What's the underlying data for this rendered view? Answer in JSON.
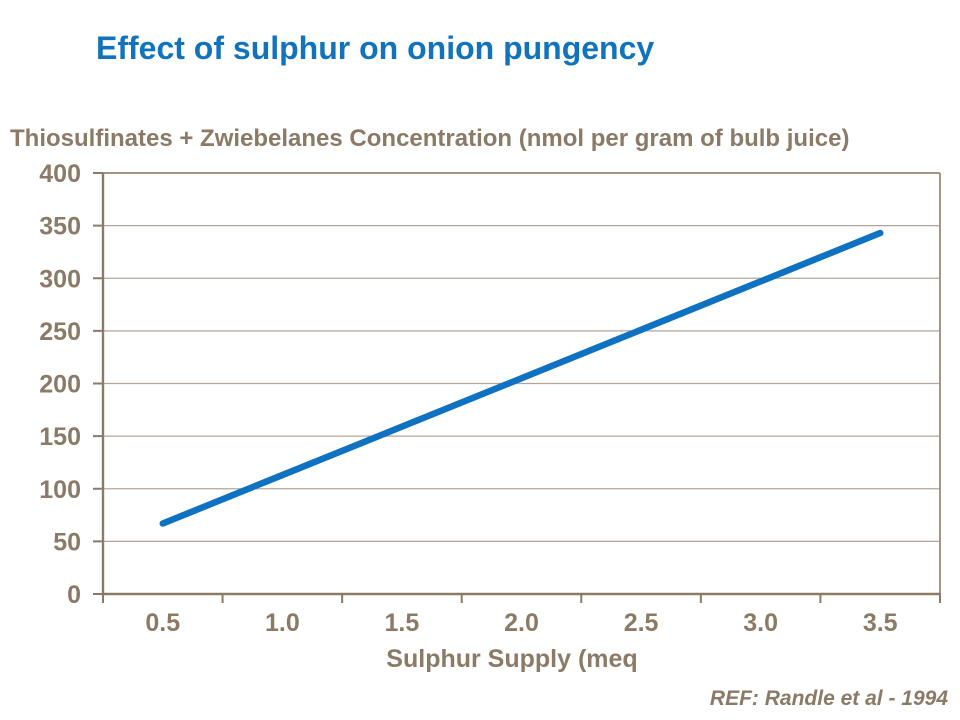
{
  "slide": {
    "reference": "REF: Randle et al - 1994"
  },
  "chart_data": {
    "type": "line",
    "title": "Effect of sulphur on onion pungency",
    "axis_title_y": "Thiosulfinates + Zwiebelanes Concentration (nmol per gram of bulb juice)",
    "axis_title_x": "Sulphur Supply (meq",
    "x": [
      0.5,
      1.0,
      1.5,
      2.0,
      2.5,
      3.0,
      3.5
    ],
    "x_tick_labels": [
      "0.5",
      "1.0",
      "1.5",
      "2.0",
      "2.5",
      "3.0",
      "3.5"
    ],
    "values": [
      67,
      113,
      159,
      205,
      251,
      297,
      343
    ],
    "yticks": [
      0,
      50,
      100,
      150,
      200,
      250,
      300,
      350,
      400
    ],
    "ylim": [
      0,
      400
    ],
    "grid": "horizontal",
    "legend": "none",
    "colors": {
      "title": "#1173BE",
      "line": "#0E71C1",
      "text": "#8A7A66",
      "axis": "#8A7A66",
      "gridline": "#B2A698",
      "frame": "#A3957F",
      "background": "#FFFFFF"
    }
  }
}
